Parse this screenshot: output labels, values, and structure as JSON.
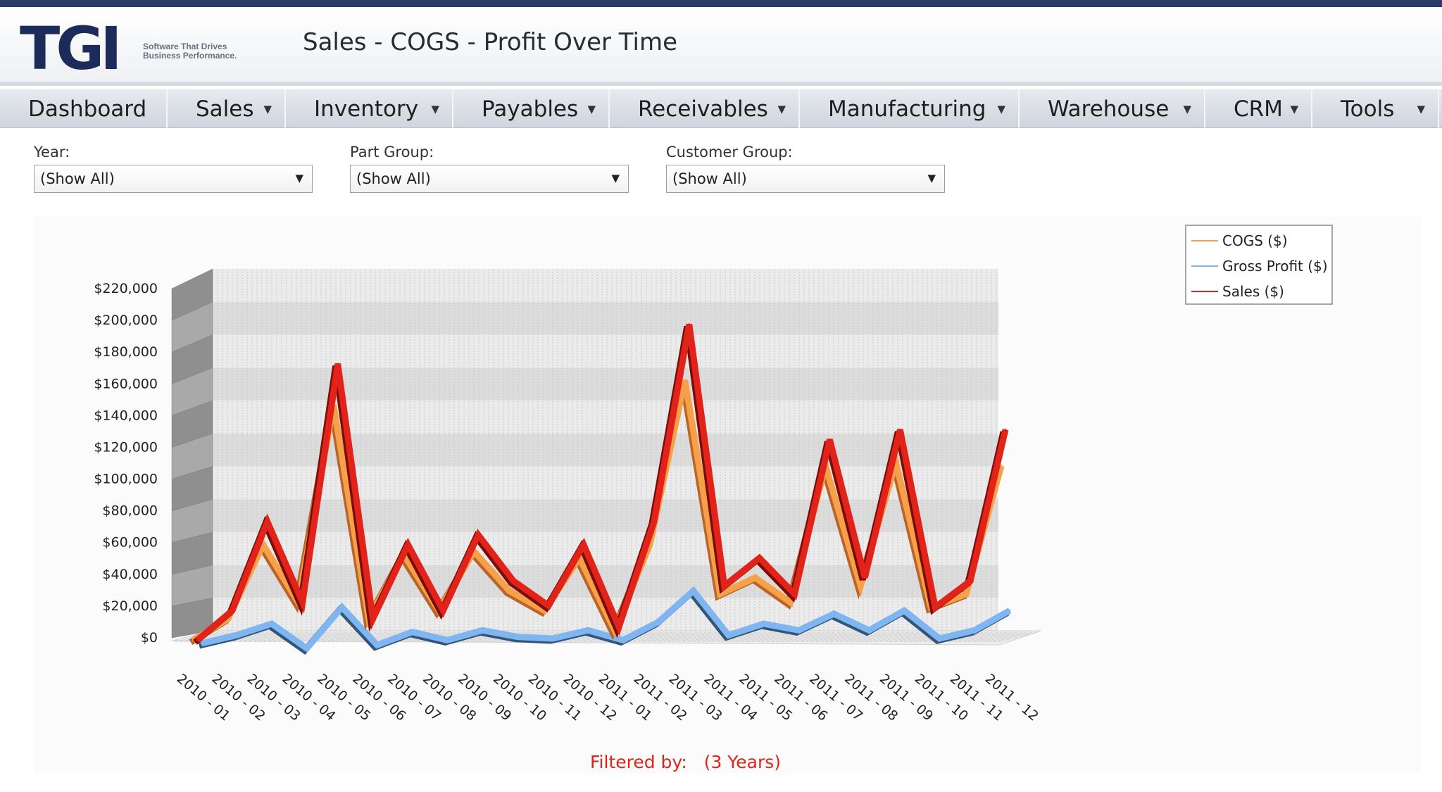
{
  "header": {
    "logo_text": "TGI",
    "tagline_line1": "Software That Drives",
    "tagline_line2": "Business Performance.",
    "title": "Sales - COGS - Profit Over Time"
  },
  "nav": {
    "items": [
      {
        "label": "Dashboard",
        "dropdown": false
      },
      {
        "label": "Sales",
        "dropdown": true
      },
      {
        "label": "Inventory",
        "dropdown": true
      },
      {
        "label": "Payables",
        "dropdown": true
      },
      {
        "label": "Receivables",
        "dropdown": true
      },
      {
        "label": "Manufacturing",
        "dropdown": true
      },
      {
        "label": "Warehouse",
        "dropdown": true
      },
      {
        "label": "CRM",
        "dropdown": true
      },
      {
        "label": "Tools",
        "dropdown": true
      }
    ]
  },
  "filters": [
    {
      "label": "Year:",
      "value": "(Show All)"
    },
    {
      "label": "Part Group:",
      "value": "(Show All)"
    },
    {
      "label": "Customer Group:",
      "value": "(Show All)"
    }
  ],
  "footer": {
    "filtered_label": "Filtered by:",
    "filtered_value": "(3 Years)"
  },
  "colors": {
    "cogs": "#f6a04a",
    "gross_profit": "#7fb6f2",
    "sales": "#e2231a",
    "nav_accent": "#2a3b66"
  },
  "chart_data": {
    "type": "line",
    "style": "3d-ribbon",
    "title": "",
    "xlabel": "",
    "ylabel": "",
    "ylim": [
      0,
      220000
    ],
    "ytick_labels": [
      "$0",
      "$20,000",
      "$40,000",
      "$60,000",
      "$80,000",
      "$100,000",
      "$120,000",
      "$140,000",
      "$160,000",
      "$180,000",
      "$200,000",
      "$220,000"
    ],
    "yticks": [
      0,
      20000,
      40000,
      60000,
      80000,
      100000,
      120000,
      140000,
      160000,
      180000,
      200000,
      220000
    ],
    "grid": true,
    "legend_position": "top-right",
    "categories": [
      "2010 - 01",
      "2010 - 02",
      "2010 - 03",
      "2010 - 04",
      "2010 - 05",
      "2010 - 06",
      "2010 - 07",
      "2010 - 08",
      "2010 - 09",
      "2010 - 10",
      "2010 - 11",
      "2010 - 12",
      "2011 - 01",
      "2011 - 02",
      "2011 - 03",
      "2011 - 04",
      "2011 - 05",
      "2011 - 06",
      "2011 - 07",
      "2011 - 08",
      "2011 - 09",
      "2011 - 10",
      "2011 - 11",
      "2011 - 12"
    ],
    "series": [
      {
        "name": "COGS ($)",
        "color": "#f6a04a",
        "values": [
          2000,
          15000,
          60000,
          25000,
          145000,
          15000,
          54000,
          20000,
          56000,
          32000,
          20000,
          52000,
          8000,
          60000,
          160000,
          30000,
          40000,
          25000,
          108000,
          35000,
          110000,
          22000,
          30000,
          108000
        ]
      },
      {
        "name": "Gross Profit ($)",
        "color": "#7fb6f2",
        "values": [
          0,
          5000,
          12000,
          -3000,
          22000,
          -1000,
          7000,
          2000,
          8000,
          4000,
          3000,
          8000,
          2000,
          13000,
          32000,
          5000,
          12000,
          8000,
          18000,
          8000,
          20000,
          3000,
          8000,
          20000
        ]
      },
      {
        "name": "Sales ($)",
        "color": "#e2231a",
        "values": [
          2000,
          20000,
          74000,
          25000,
          170000,
          15000,
          60000,
          20000,
          66000,
          38000,
          23000,
          60000,
          10000,
          74000,
          194000,
          35000,
          52000,
          30000,
          124000,
          40000,
          130000,
          22000,
          38000,
          130000
        ]
      }
    ]
  }
}
